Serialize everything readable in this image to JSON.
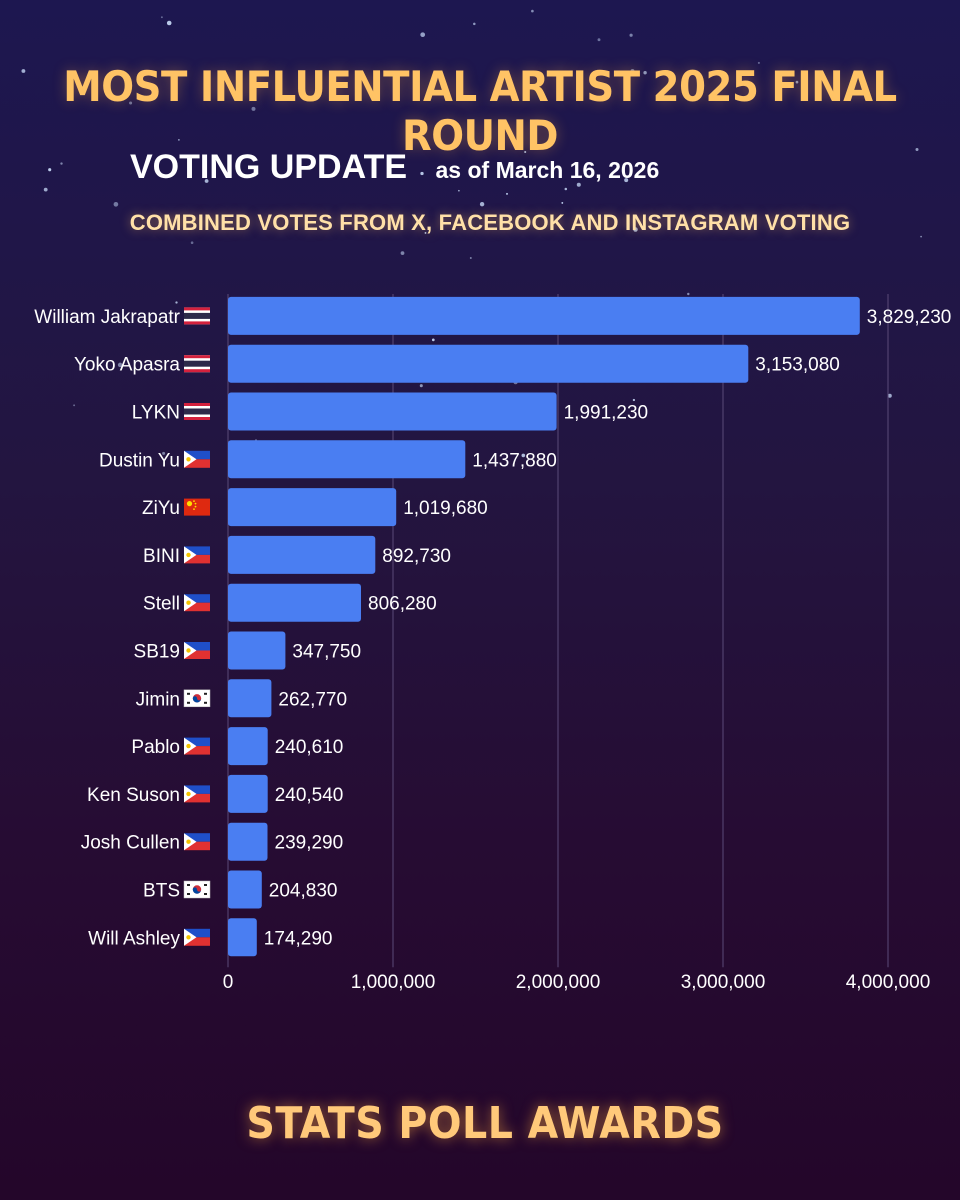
{
  "header": {
    "title": "MOST INFLUENTIAL ARTIST 2025 FINAL ROUND",
    "update_label": "VOTING UPDATE",
    "as_of": "as of March 16, 2026",
    "subtitle": "COMBINED VOTES FROM X, FACEBOOK AND INSTAGRAM VOTING"
  },
  "footer": {
    "brand": "STATS POLL AWARDS"
  },
  "colors": {
    "bar": "#4a7ef2",
    "title": "#ffc365",
    "subtitle": "#ffe0a8",
    "gridline": "#5a4a78"
  },
  "chart_data": {
    "type": "bar",
    "orientation": "horizontal",
    "title": "MOST INFLUENTIAL ARTIST 2025 FINAL ROUND",
    "xlabel": "",
    "ylabel": "",
    "xlim": [
      0,
      4000000
    ],
    "x_ticks": [
      0,
      1000000,
      2000000,
      3000000,
      4000000
    ],
    "x_tick_labels": [
      "0",
      "1,000,000",
      "2,000,000",
      "3,000,000",
      "4,000,000"
    ],
    "grid": "vertical",
    "categories": [
      "William Jakrapatr",
      "Yoko Apasra",
      "LYKN",
      "Dustin Yu",
      "ZiYu",
      "BINI",
      "Stell",
      "SB19",
      "Jimin",
      "Pablo",
      "Ken Suson",
      "Josh Cullen",
      "BTS",
      "Will Ashley"
    ],
    "flags": [
      "thailand-flag-icon",
      "thailand-flag-icon",
      "thailand-flag-icon",
      "philippines-flag-icon",
      "china-flag-icon",
      "philippines-flag-icon",
      "philippines-flag-icon",
      "philippines-flag-icon",
      "south-korea-flag-icon",
      "philippines-flag-icon",
      "philippines-flag-icon",
      "philippines-flag-icon",
      "south-korea-flag-icon",
      "philippines-flag-icon"
    ],
    "values": [
      3829230,
      3153080,
      1991230,
      1437880,
      1019680,
      892730,
      806280,
      347750,
      262770,
      240610,
      240540,
      239290,
      204830,
      174290
    ],
    "value_labels": [
      "3,829,230",
      "3,153,080",
      "1,991,230",
      "1,437,880",
      "1,019,680",
      "892,730",
      "806,280",
      "347,750",
      "262,770",
      "240,610",
      "240,540",
      "239,290",
      "204,830",
      "174,290"
    ]
  }
}
